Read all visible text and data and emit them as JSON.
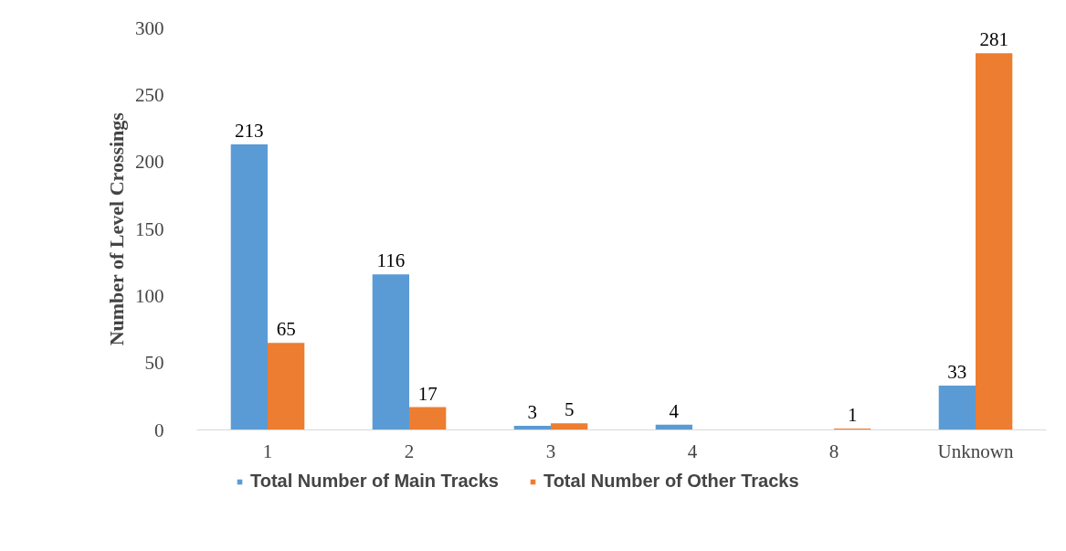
{
  "chart_data": {
    "type": "bar",
    "ylabel": "Number of Level Crossings",
    "categories": [
      "1",
      "2",
      "3",
      "4",
      "8",
      "Unknown"
    ],
    "series": [
      {
        "name": "Total Number of Main Tracks",
        "color": "#5b9bd5",
        "values": [
          213,
          116,
          3,
          4,
          null,
          33
        ]
      },
      {
        "name": "Total Number of Other Tracks",
        "color": "#ed7d31",
        "values": [
          65,
          17,
          5,
          null,
          1,
          281
        ]
      }
    ],
    "ylim": [
      0,
      300
    ],
    "yticks": [
      0,
      50,
      100,
      150,
      200,
      250,
      300
    ],
    "data_labels": true,
    "grid": false,
    "legend": "bottom"
  }
}
